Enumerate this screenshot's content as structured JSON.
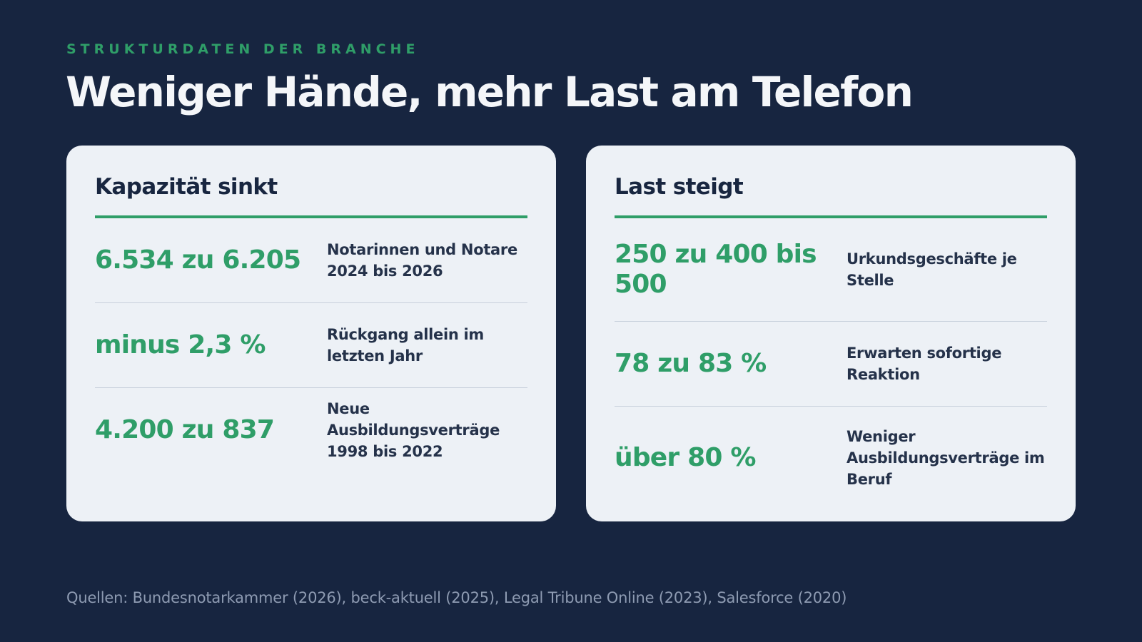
{
  "eyebrow": "STRUKTURDATEN DER BRANCHE",
  "headline": "Weniger Hände, mehr Last am Telefon",
  "cards": [
    {
      "title": "Kapazität sinkt",
      "stats": [
        {
          "value": "6.534 zu 6.205",
          "label": "Notarinnen und Notare 2024 bis 2026"
        },
        {
          "value": "minus 2,3 %",
          "label": "Rückgang allein im letzten Jahr"
        },
        {
          "value": "4.200 zu 837",
          "label": "Neue Ausbildungsverträge 1998 bis 2022"
        }
      ]
    },
    {
      "title": "Last steigt",
      "stats": [
        {
          "value": "250 zu 400 bis 500",
          "label": "Urkundsgeschäfte je Stelle"
        },
        {
          "value": "78 zu 83 %",
          "label": "Erwarten sofortige Reaktion"
        },
        {
          "value": "über 80 %",
          "label": "Weniger Ausbildungsverträge im Beruf"
        }
      ]
    }
  ],
  "sources": "Quellen: Bundesnotarkammer (2026), beck-aktuell (2025), Legal Tribune Online (2023), Salesforce (2020)",
  "colors": {
    "background": "#172540",
    "accent": "#2f9e68",
    "card": "#edf1f6",
    "text_dark": "#182640",
    "muted": "#8e9bb2"
  }
}
